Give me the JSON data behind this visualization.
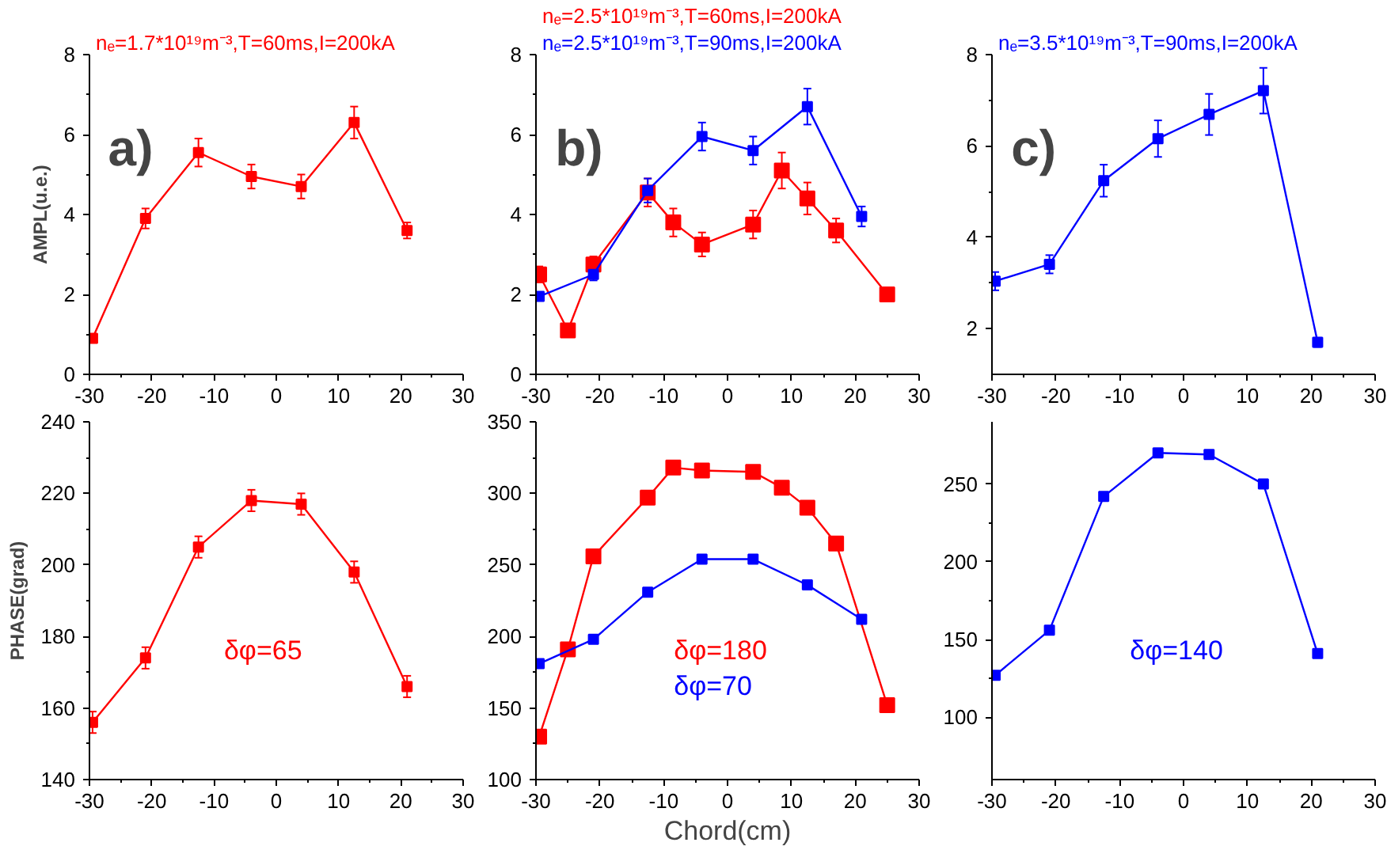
{
  "chart_data": [
    {
      "type": "line",
      "ylabel": "AMPL(u.e.)",
      "annotations": [
        "a)"
      ],
      "xlim": [
        -30,
        30
      ],
      "xticks": [
        -30,
        -20,
        -10,
        0,
        10,
        20,
        30
      ],
      "ylim": [
        0,
        8
      ],
      "yticks": [
        0,
        2,
        4,
        6,
        8
      ],
      "marker": "square",
      "line_style": "solid",
      "grid": false,
      "series": [
        {
          "name": "nₑ=1.7*10¹⁹m⁻³,T=60ms,I=200kA",
          "color": "#ff0000",
          "x": [
            -29.5,
            -21,
            -12.5,
            -4,
            4,
            12.5,
            21
          ],
          "values": [
            0.9,
            3.9,
            5.55,
            4.95,
            4.7,
            6.3,
            3.6
          ],
          "errors": [
            0.05,
            0.25,
            0.35,
            0.3,
            0.3,
            0.4,
            0.2
          ]
        }
      ]
    },
    {
      "type": "line",
      "annotations": [
        "b)"
      ],
      "xlim": [
        -30,
        30
      ],
      "xticks": [
        -30,
        -20,
        -10,
        0,
        10,
        20,
        30
      ],
      "ylim": [
        0,
        8
      ],
      "yticks": [
        0,
        2,
        4,
        6,
        8
      ],
      "marker": "square",
      "line_style": "solid",
      "grid": false,
      "series": [
        {
          "name": "nₑ=2.5*10¹⁹m⁻³,T=60ms,I=200kA",
          "color": "#ff0000",
          "x": [
            -29.5,
            -25,
            -21,
            -12.5,
            -8.5,
            -4,
            4,
            8.5,
            12.5,
            17,
            25
          ],
          "values": [
            2.5,
            1.1,
            2.75,
            4.55,
            3.8,
            3.25,
            3.75,
            5.1,
            4.4,
            3.6,
            2.0
          ],
          "errors": [
            0.2,
            0.05,
            0.2,
            0.35,
            0.35,
            0.3,
            0.35,
            0.45,
            0.4,
            0.3,
            0.15
          ]
        },
        {
          "name": "nₑ=2.5*10¹⁹m⁻³,T=90ms,I=200kA",
          "color": "#0000ff",
          "x": [
            -29.5,
            -21,
            -12.5,
            -4,
            4,
            12.5,
            21
          ],
          "values": [
            1.95,
            2.5,
            4.6,
            5.95,
            5.6,
            6.7,
            3.95
          ],
          "errors": [
            0.1,
            0.15,
            0.3,
            0.35,
            0.35,
            0.45,
            0.25
          ]
        }
      ]
    },
    {
      "type": "line",
      "annotations": [
        "c)"
      ],
      "xlim": [
        -30,
        30
      ],
      "xticks": [
        -30,
        -20,
        -10,
        0,
        10,
        20,
        30
      ],
      "ylim": [
        1,
        8
      ],
      "yticks": [
        2,
        4,
        6,
        8
      ],
      "marker": "square",
      "line_style": "solid",
      "grid": false,
      "series": [
        {
          "name": "nₑ=3.5*10¹⁹m⁻³,T=90ms,I=200kA",
          "color": "#0000ff",
          "x": [
            -29.5,
            -21,
            -12.5,
            -4,
            4,
            12.5,
            21
          ],
          "values": [
            3.04,
            3.41,
            5.24,
            6.16,
            6.69,
            7.21,
            1.7
          ],
          "errors": [
            0.2,
            0.2,
            0.35,
            0.4,
            0.45,
            0.5,
            0.1
          ]
        }
      ]
    },
    {
      "type": "line",
      "ylabel": "PHASE(grad)",
      "xlim": [
        -30,
        30
      ],
      "xticks": [
        -30,
        -20,
        -10,
        0,
        10,
        20,
        30
      ],
      "ylim": [
        140,
        240
      ],
      "yticks": [
        140,
        160,
        180,
        200,
        220,
        240
      ],
      "marker": "square",
      "line_style": "solid",
      "grid": false,
      "series": [
        {
          "name": "δφ=65",
          "color": "#ff0000",
          "x": [
            -29.5,
            -21,
            -12.5,
            -4,
            4,
            12.5,
            21
          ],
          "values": [
            156,
            174,
            205,
            218,
            217,
            198,
            166
          ],
          "errors": [
            3,
            3,
            3,
            3,
            3,
            3,
            3
          ]
        }
      ]
    },
    {
      "type": "line",
      "xlabel": "Chord(cm)",
      "xlim": [
        -30,
        30
      ],
      "xticks": [
        -30,
        -20,
        -10,
        0,
        10,
        20,
        30
      ],
      "ylim": [
        100,
        350
      ],
      "yticks": [
        100,
        150,
        200,
        250,
        300,
        350
      ],
      "marker": "square",
      "line_style": "solid",
      "grid": false,
      "series": [
        {
          "name": "δφ=180",
          "color": "#ff0000",
          "x": [
            -29.5,
            -25,
            -21,
            -12.5,
            -8.5,
            -4,
            4,
            8.5,
            12.5,
            17,
            25
          ],
          "values": [
            130,
            191,
            256,
            297,
            318,
            316,
            315,
            304,
            290,
            265,
            152
          ]
        },
        {
          "name": "δφ=70",
          "color": "#0000ff",
          "x": [
            -29.5,
            -21,
            -12.5,
            -4,
            4,
            12.5,
            21
          ],
          "values": [
            181,
            198,
            231,
            254,
            254,
            236,
            212
          ]
        }
      ]
    },
    {
      "type": "line",
      "xlim": [
        -30,
        30
      ],
      "xticks": [
        -30,
        -20,
        -10,
        0,
        10,
        20,
        30
      ],
      "ylim": [
        60,
        290
      ],
      "yticks": [
        100,
        150,
        200,
        250
      ],
      "marker": "square",
      "line_style": "solid",
      "grid": false,
      "series": [
        {
          "name": "δφ=140",
          "color": "#0000ff",
          "x": [
            -29.5,
            -21,
            -12.5,
            -4,
            4,
            12.5,
            21
          ],
          "values": [
            127,
            156,
            242,
            270,
            269,
            250,
            141
          ]
        }
      ]
    }
  ]
}
